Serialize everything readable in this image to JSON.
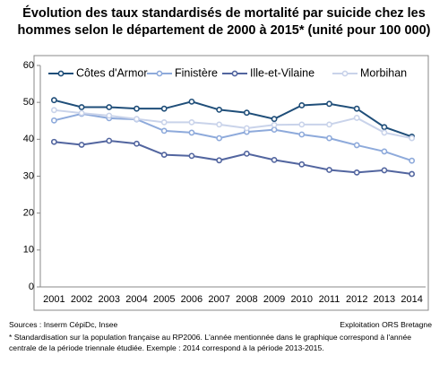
{
  "chart_data": {
    "type": "line",
    "title": "Évolution des taux standardisés de mortalité par suicide chez les hommes selon le département de 2000 à 2015* (unité pour 100 000)",
    "categories": [
      "2001",
      "2002",
      "2003",
      "2004",
      "2005",
      "2006",
      "2007",
      "2008",
      "2009",
      "2010",
      "2011",
      "2012",
      "2013",
      "2014"
    ],
    "series": [
      {
        "name": "Côtes d'Armor",
        "color": "#1f4e79",
        "values": [
          50.6,
          48.7,
          48.7,
          48.3,
          48.3,
          50.2,
          48.0,
          47.2,
          45.5,
          49.2,
          49.6,
          48.3,
          43.3,
          40.7
        ]
      },
      {
        "name": "Finistère",
        "color": "#8eaadb",
        "values": [
          45.1,
          46.9,
          45.7,
          45.4,
          42.3,
          41.8,
          40.3,
          42.0,
          42.6,
          41.3,
          40.3,
          38.4,
          36.7,
          34.2
        ]
      },
      {
        "name": "Ille-et-Vilaine",
        "color": "#52659f",
        "values": [
          39.3,
          38.5,
          39.6,
          38.8,
          35.8,
          35.5,
          34.3,
          36.1,
          34.4,
          33.2,
          31.7,
          31.0,
          31.6,
          30.6
        ]
      },
      {
        "name": "Morbihan",
        "color": "#c9d3ea",
        "values": [
          47.9,
          47.1,
          46.4,
          45.5,
          44.6,
          44.6,
          44.0,
          43.0,
          43.9,
          44.0,
          44.0,
          45.8,
          41.8,
          40.3
        ]
      }
    ],
    "ylim": [
      0,
      60
    ],
    "yticks": [
      0,
      10,
      20,
      30,
      40,
      50,
      60
    ],
    "grid": false,
    "legend": "top",
    "source": "Sources : Inserm CépiDc, Insee",
    "credit": "Exploitation ORS Bretagne",
    "note": "* Standardisation sur la population française au RP2006. L'année mentionnée dans le graphique correspond à l'année centrale de la période triennale étudiée. Exemple : 2014 correspond à la période 2013-2015."
  }
}
